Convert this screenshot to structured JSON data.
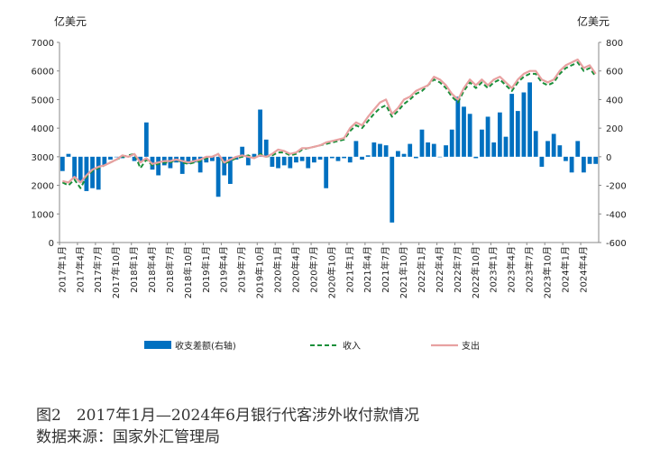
{
  "chart_data": {
    "type": "bar+line",
    "left_axis": {
      "unit": "亿美元",
      "ylim": [
        0,
        7000
      ],
      "ticks": [
        0,
        1000,
        2000,
        3000,
        4000,
        5000,
        6000,
        7000
      ]
    },
    "right_axis": {
      "unit": "亿美元",
      "ylim": [
        -600,
        800
      ],
      "ticks": [
        -600,
        -400,
        -200,
        0,
        200,
        400,
        600,
        800
      ]
    },
    "x_tick_labels": [
      "2017年1月",
      "2017年4月",
      "2017年7月",
      "2017年10月",
      "2018年1月",
      "2018年4月",
      "2018年7月",
      "2018年10月",
      "2019年1月",
      "2019年4月",
      "2019年7月",
      "2019年10月",
      "2020年1月",
      "2020年4月",
      "2020年7月",
      "2020年10月",
      "2021年1月",
      "2021年4月",
      "2021年7月",
      "2021年10月",
      "2022年1月",
      "2022年4月",
      "2022年7月",
      "2022年10月",
      "2023年1月",
      "2023年4月",
      "2023年7月",
      "2023年10月",
      "2024年1月",
      "2024年4月"
    ],
    "months": 90,
    "legend": [
      "收支差额(右轴)",
      "收入",
      "支出"
    ],
    "series": [
      {
        "name": "收支差额(右轴)",
        "axis": "right",
        "kind": "bar",
        "color": "#0070C0",
        "values": [
          -100,
          20,
          -150,
          -180,
          -240,
          -220,
          -230,
          -60,
          -20,
          0,
          -10,
          0,
          -30,
          -40,
          240,
          -90,
          -130,
          -60,
          -80,
          -40,
          -120,
          -50,
          -40,
          -110,
          -40,
          -30,
          -280,
          -130,
          -190,
          -20,
          70,
          -60,
          20,
          330,
          120,
          -70,
          -80,
          -60,
          -80,
          -40,
          -30,
          -80,
          -40,
          -20,
          -220,
          -10,
          -30,
          -10,
          -40,
          110,
          -20,
          10,
          100,
          90,
          80,
          -460,
          40,
          20,
          90,
          -10,
          190,
          100,
          90,
          0,
          80,
          190,
          420,
          350,
          300,
          -10,
          190,
          280,
          100,
          310,
          140,
          440,
          320,
          450,
          520,
          180,
          -70,
          110,
          160,
          80,
          -30,
          -110,
          110,
          -110,
          -50,
          -50
        ]
      },
      {
        "name": "收入",
        "axis": "left",
        "kind": "line",
        "dash": true,
        "color": "#1A8F3A",
        "values": [
          2100,
          2000,
          2200,
          1900,
          2300,
          2500,
          2600,
          2700,
          2800,
          2900,
          3000,
          3050,
          3100,
          2600,
          2900,
          2700,
          2750,
          2800,
          2800,
          2900,
          2800,
          2750,
          2800,
          2850,
          2950,
          3000,
          3100,
          2750,
          2850,
          2950,
          3000,
          3050,
          2950,
          3100,
          3000,
          3050,
          3150,
          3150,
          3050,
          3100,
          3250,
          3300,
          3350,
          3400,
          3450,
          3500,
          3550,
          3600,
          3900,
          4100,
          4000,
          4250,
          4500,
          4700,
          4800,
          4400,
          4600,
          4850,
          5000,
          5200,
          5300,
          5500,
          5700,
          5600,
          5400,
          5100,
          4900,
          5300,
          5600,
          5400,
          5600,
          5400,
          5600,
          5700,
          5500,
          5300,
          5600,
          5800,
          5900,
          5900,
          5600,
          5500,
          5600,
          5900,
          6100,
          6200,
          6300,
          6000,
          6100,
          5800
        ]
      },
      {
        "name": "支出",
        "axis": "left",
        "kind": "line",
        "dash": false,
        "color": "#E8A1A1",
        "values": [
          2150,
          2100,
          2300,
          2100,
          2350,
          2550,
          2650,
          2700,
          2800,
          2900,
          3050,
          3000,
          3100,
          2800,
          2950,
          2750,
          2800,
          2850,
          2850,
          2900,
          2850,
          2800,
          2850,
          2900,
          3000,
          3000,
          3100,
          2800,
          2900,
          3000,
          3050,
          3000,
          2950,
          3050,
          3000,
          3100,
          3250,
          3200,
          3100,
          3150,
          3300,
          3300,
          3350,
          3400,
          3500,
          3550,
          3600,
          3650,
          4000,
          4200,
          4100,
          4400,
          4650,
          4900,
          5000,
          4500,
          4700,
          5000,
          5100,
          5300,
          5400,
          5500,
          5800,
          5700,
          5500,
          5200,
          5000,
          5400,
          5700,
          5500,
          5700,
          5500,
          5700,
          5800,
          5600,
          5400,
          5700,
          5900,
          6000,
          6000,
          5700,
          5600,
          5700,
          6000,
          6200,
          6300,
          6400,
          6100,
          6200,
          5900
        ]
      }
    ]
  },
  "caption": {
    "title": "图2　2017年1月—2024年6月银行代客涉外收付款情况",
    "source": "数据来源：国家外汇管理局"
  }
}
